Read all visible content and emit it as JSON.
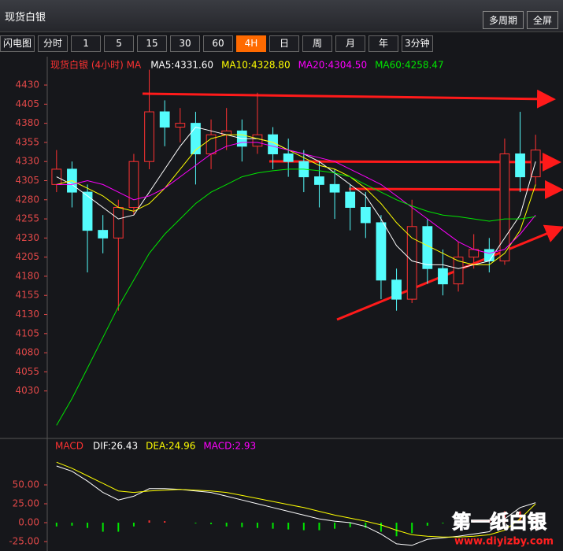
{
  "header": {
    "title": "现货白银",
    "buttons": [
      "多周期",
      "全屏"
    ]
  },
  "toolbar": {
    "items": [
      "闪电图",
      "分时",
      "1",
      "5",
      "15",
      "30",
      "60",
      "4H",
      "日",
      "周",
      "月",
      "年",
      "3分钟"
    ],
    "active": "4H"
  },
  "watermark": {
    "text": "第一纸白银",
    "url": "www.diyizby.com"
  },
  "chart_data": [
    {
      "type": "candlestick",
      "title": "现货白银 (4小时) MA",
      "open": [
        4300,
        4320,
        4290,
        4240,
        4230,
        4270,
        4330,
        4395,
        4375,
        4380,
        4340,
        4365,
        4370,
        4350,
        4365,
        4340,
        4330,
        4310,
        4300,
        4290,
        4270,
        4250,
        4175,
        4150,
        4245,
        4190,
        4170,
        4205,
        4215,
        4200,
        4340,
        4310
      ],
      "close": [
        4320,
        4290,
        4240,
        4230,
        4270,
        4330,
        4395,
        4375,
        4380,
        4340,
        4365,
        4370,
        4350,
        4365,
        4340,
        4330,
        4310,
        4300,
        4290,
        4270,
        4250,
        4175,
        4150,
        4245,
        4190,
        4170,
        4205,
        4215,
        4200,
        4340,
        4310,
        4345
      ],
      "high": [
        4345,
        4330,
        4300,
        4260,
        4280,
        4340,
        4450,
        4410,
        4400,
        4395,
        4385,
        4400,
        4385,
        4420,
        4375,
        4360,
        4345,
        4330,
        4320,
        4300,
        4290,
        4260,
        4190,
        4280,
        4255,
        4215,
        4225,
        4235,
        4230,
        4360,
        4395,
        4365
      ],
      "low": [
        4290,
        4270,
        4185,
        4210,
        4135,
        4260,
        4320,
        4350,
        4355,
        4300,
        4320,
        4345,
        4330,
        4340,
        4320,
        4310,
        4290,
        4270,
        4255,
        4240,
        4230,
        4150,
        4135,
        4145,
        4170,
        4155,
        4160,
        4190,
        4185,
        4195,
        4290,
        4300
      ],
      "up_color": "#ff3232",
      "down_color": "#54fcfc",
      "series": [
        {
          "name": "MA5:4331.60",
          "color": "#ffffff",
          "values": [
            4310,
            4300,
            4285,
            4270,
            4255,
            4260,
            4290,
            4320,
            4350,
            4375,
            4370,
            4365,
            4360,
            4360,
            4355,
            4345,
            4340,
            4330,
            4315,
            4300,
            4285,
            4255,
            4220,
            4200,
            4195,
            4195,
            4190,
            4195,
            4200,
            4230,
            4260,
            4330
          ]
        },
        {
          "name": "MA10:4328.80",
          "color": "#ffff00",
          "values": [
            4300,
            4305,
            4295,
            4285,
            4270,
            4265,
            4275,
            4295,
            4320,
            4345,
            4360,
            4365,
            4365,
            4360,
            4355,
            4345,
            4335,
            4325,
            4320,
            4310,
            4295,
            4275,
            4250,
            4230,
            4220,
            4210,
            4200,
            4195,
            4195,
            4210,
            4240,
            4300
          ]
        },
        {
          "name": "MA20:4304.50",
          "color": "#ff00ff",
          "values": [
            4300,
            4300,
            4305,
            4300,
            4290,
            4280,
            4285,
            4295,
            4310,
            4325,
            4340,
            4350,
            4355,
            4355,
            4350,
            4345,
            4340,
            4335,
            4330,
            4320,
            4310,
            4300,
            4285,
            4270,
            4255,
            4240,
            4225,
            4215,
            4210,
            4215,
            4235,
            4260
          ]
        },
        {
          "name": "MA60:4258.47",
          "color": "#00e600",
          "values": [
            3985,
            4020,
            4060,
            4100,
            4140,
            4175,
            4210,
            4235,
            4255,
            4275,
            4290,
            4300,
            4310,
            4315,
            4318,
            4320,
            4320,
            4318,
            4315,
            4310,
            4300,
            4290,
            4280,
            4272,
            4265,
            4260,
            4258,
            4255,
            4252,
            4255,
            4255,
            4258
          ]
        }
      ],
      "ylim": [
        3970,
        4464
      ],
      "yticks": [
        4030,
        4055,
        4080,
        4105,
        4130,
        4155,
        4180,
        4205,
        4230,
        4255,
        4280,
        4305,
        4330,
        4355,
        4380,
        4405,
        4430
      ]
    },
    {
      "type": "macd",
      "title": "MACD",
      "series": [
        {
          "name": "DIF:26.43",
          "color": "#ffffff",
          "values": [
            75,
            68,
            55,
            40,
            30,
            35,
            45,
            45,
            44,
            42,
            40,
            35,
            30,
            25,
            20,
            15,
            10,
            5,
            2,
            0,
            -5,
            -15,
            -28,
            -30,
            -22,
            -20,
            -18,
            -15,
            -12,
            5,
            20,
            26.43
          ]
        },
        {
          "name": "DEA:24.96",
          "color": "#ffff00",
          "values": [
            80,
            72,
            62,
            52,
            42,
            40,
            42,
            43,
            44,
            43,
            42,
            40,
            36,
            32,
            28,
            24,
            20,
            15,
            10,
            6,
            2,
            -3,
            -10,
            -16,
            -18,
            -19,
            -19,
            -18,
            -16,
            -10,
            5,
            24.96
          ]
        }
      ],
      "histogram": {
        "name": "MACD:2.93",
        "color": "#ff00ff",
        "up_color": "#ff3232",
        "down_color": "#00e600",
        "values": [
          -5,
          -4,
          -7,
          -12,
          -12,
          -5,
          3,
          2,
          0,
          -1,
          -2,
          -5,
          -6,
          -7,
          -8,
          -9,
          -10,
          -10,
          -8,
          -6,
          -7,
          -12,
          -18,
          -14,
          -4,
          -1,
          1,
          3,
          4,
          15,
          15,
          2.93
        ]
      },
      "ylim": [
        -37.5,
        92.7
      ],
      "yticks": [
        {
          "value": -25,
          "label": "-25.00"
        },
        {
          "value": 0,
          "label": "0.00"
        },
        {
          "value": 25,
          "label": "25.00"
        },
        {
          "value": 50,
          "label": "50.00"
        }
      ]
    }
  ]
}
